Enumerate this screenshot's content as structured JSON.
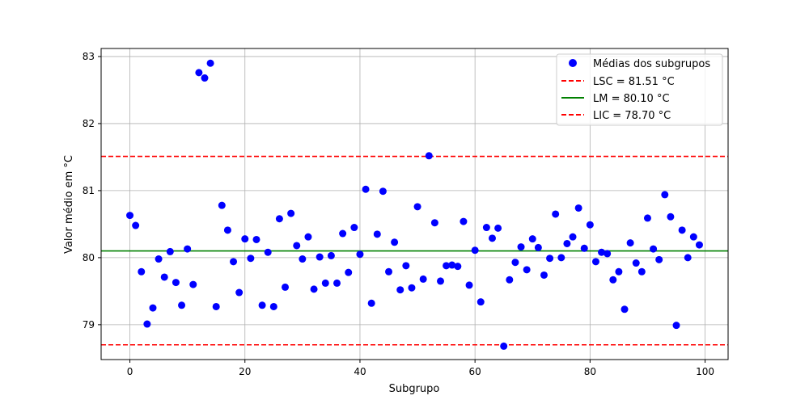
{
  "chart_data": {
    "type": "scatter",
    "title": "",
    "xlabel": "Subgrupo",
    "ylabel": "Valor médio em °C",
    "xlim": [
      -5,
      104
    ],
    "ylim": [
      78.48,
      83.12
    ],
    "xticks": [
      0,
      20,
      40,
      60,
      80,
      100
    ],
    "yticks": [
      79,
      80,
      81,
      82,
      83
    ],
    "grid": true,
    "legend_position": "top-right",
    "series": [
      {
        "name": "Médias dos subgrupos",
        "marker": "circle",
        "color": "#0000ff",
        "x": [
          0,
          1,
          2,
          3,
          4,
          5,
          6,
          7,
          8,
          9,
          10,
          11,
          12,
          13,
          14,
          15,
          16,
          17,
          18,
          19,
          20,
          21,
          22,
          23,
          24,
          25,
          26,
          27,
          28,
          29,
          30,
          31,
          32,
          33,
          34,
          35,
          36,
          37,
          38,
          39,
          40,
          41,
          42,
          43,
          44,
          45,
          46,
          47,
          48,
          49,
          50,
          51,
          52,
          53,
          54,
          55,
          56,
          57,
          58,
          59,
          60,
          61,
          62,
          63,
          64,
          65,
          66,
          67,
          68,
          69,
          70,
          71,
          72,
          73,
          74,
          75,
          76,
          77,
          78,
          79,
          80,
          81,
          82,
          83,
          84,
          85,
          86,
          87,
          88,
          89,
          90,
          91,
          92,
          93,
          94,
          95,
          96,
          97,
          98,
          99
        ],
        "y": [
          80.63,
          80.48,
          79.79,
          79.01,
          79.25,
          79.98,
          79.71,
          80.09,
          79.63,
          79.29,
          80.13,
          79.6,
          82.76,
          82.68,
          82.9,
          79.27,
          80.78,
          80.41,
          79.94,
          79.48,
          80.28,
          79.99,
          80.27,
          79.29,
          80.08,
          79.27,
          80.58,
          79.56,
          80.66,
          80.18,
          79.98,
          80.31,
          79.53,
          80.01,
          79.62,
          80.03,
          79.62,
          80.36,
          79.78,
          80.45,
          80.05,
          81.02,
          79.32,
          80.35,
          80.99,
          79.79,
          80.23,
          79.52,
          79.88,
          79.55,
          80.76,
          79.68,
          81.52,
          80.52,
          79.65,
          79.88,
          79.89,
          79.87,
          80.54,
          79.59,
          80.11,
          79.34,
          80.45,
          80.29,
          80.44,
          78.68,
          79.67,
          79.93,
          80.16,
          79.82,
          80.28,
          80.15,
          79.74,
          79.99,
          80.65,
          80.0,
          80.21,
          80.31,
          80.74,
          80.14,
          80.49,
          79.94,
          80.08,
          80.06,
          79.67,
          79.79,
          79.23,
          80.22,
          79.92,
          79.79,
          80.59,
          80.13,
          79.97,
          80.94,
          80.61,
          78.99,
          80.41,
          80.0,
          80.31,
          80.19
        ]
      }
    ],
    "lines": [
      {
        "name": "LSC = 81.51 °C",
        "y": 81.51,
        "color": "#ff0000",
        "style": "dashed"
      },
      {
        "name": "LM = 80.10 °C",
        "y": 80.1,
        "color": "#008000",
        "style": "solid"
      },
      {
        "name": "LIC = 78.70 °C",
        "y": 78.7,
        "color": "#ff0000",
        "style": "dashed"
      }
    ]
  }
}
